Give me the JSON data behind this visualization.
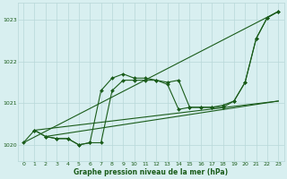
{
  "background_color": "#d8eff0",
  "grid_color": "#b8d8d8",
  "line_color": "#1a5c1a",
  "xlabel": "Graphe pression niveau de la mer (hPa)",
  "ylim": [
    1019.6,
    1023.4
  ],
  "xlim": [
    -0.5,
    23.5
  ],
  "yticks": [
    1020,
    1021,
    1022,
    1023
  ],
  "xticks": [
    0,
    1,
    2,
    3,
    4,
    5,
    6,
    7,
    8,
    9,
    10,
    11,
    12,
    13,
    14,
    15,
    16,
    17,
    18,
    19,
    20,
    21,
    22,
    23
  ],
  "series1_x": [
    0,
    1,
    2,
    3,
    4,
    5,
    6,
    7,
    8,
    9,
    10,
    11,
    12,
    13,
    14,
    15,
    16,
    17,
    18,
    19,
    20,
    21,
    22,
    23
  ],
  "series1_y": [
    1020.05,
    1020.35,
    1020.2,
    1020.15,
    1020.15,
    1020.0,
    1020.05,
    1021.3,
    1021.6,
    1021.7,
    1021.6,
    1021.6,
    1021.55,
    1021.45,
    1020.85,
    1020.9,
    1020.9,
    1020.9,
    1020.95,
    1021.05,
    1021.5,
    1022.55,
    1023.05,
    1023.2
  ],
  "series2_x": [
    1,
    2,
    3,
    4,
    5,
    6,
    7,
    8,
    9,
    10,
    11,
    12,
    13,
    14,
    15,
    16,
    17,
    18,
    19,
    20,
    21,
    22,
    23
  ],
  "series2_y": [
    1020.35,
    1020.2,
    1020.15,
    1020.15,
    1020.0,
    1020.05,
    1020.05,
    1021.3,
    1021.55,
    1021.55,
    1021.55,
    1021.55,
    1021.5,
    1021.55,
    1020.9,
    1020.9,
    1020.9,
    1020.9,
    1021.05,
    1021.5,
    1022.55,
    1023.05,
    1023.2
  ],
  "trend1_x": [
    0,
    23
  ],
  "trend1_y": [
    1020.05,
    1023.2
  ],
  "trend2_x": [
    1,
    23
  ],
  "trend2_y": [
    1020.35,
    1021.05
  ],
  "trend3_x": [
    2,
    23
  ],
  "trend3_y": [
    1020.2,
    1021.05
  ]
}
